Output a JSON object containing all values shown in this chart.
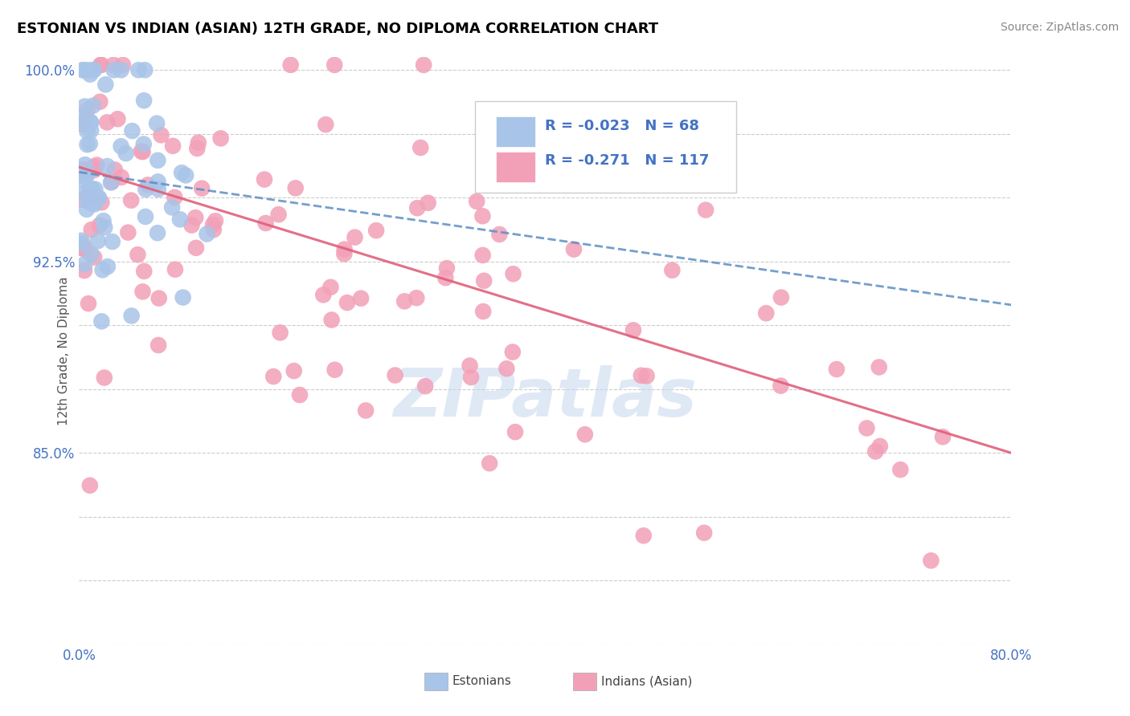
{
  "title": "ESTONIAN VS INDIAN (ASIAN) 12TH GRADE, NO DIPLOMA CORRELATION CHART",
  "source": "Source: ZipAtlas.com",
  "ylabel": "12th Grade, No Diploma",
  "x_min": 0.0,
  "x_max": 0.8,
  "y_min": 0.775,
  "y_max": 1.005,
  "estonian_color": "#a8c4e8",
  "indian_color": "#f2a0b8",
  "estonian_R": -0.023,
  "estonian_N": 68,
  "indian_R": -0.271,
  "indian_N": 117,
  "trend_estonian_color": "#5b8ec4",
  "trend_indian_color": "#e0607a",
  "watermark": "ZIPatlas",
  "legend_label_estonian": "Estonians",
  "legend_label_indian": "Indians (Asian)",
  "est_trend_x0": 0.0,
  "est_trend_x1": 0.8,
  "est_trend_y0": 0.96,
  "est_trend_y1": 0.908,
  "ind_trend_x0": 0.0,
  "ind_trend_x1": 0.8,
  "ind_trend_y0": 0.962,
  "ind_trend_y1": 0.85,
  "y_ticks": [
    0.775,
    0.8,
    0.825,
    0.85,
    0.875,
    0.9,
    0.925,
    0.95,
    0.975,
    1.0
  ],
  "y_tick_labels": [
    "",
    "",
    "",
    "85.0%",
    "",
    "",
    "92.5%",
    "",
    "",
    "100.0%"
  ],
  "x_ticks": [
    0.0,
    0.1,
    0.2,
    0.3,
    0.4,
    0.5,
    0.6,
    0.7,
    0.8
  ],
  "x_tick_labels": [
    "0.0%",
    "",
    "",
    "",
    "",
    "",
    "",
    "",
    "80.0%"
  ]
}
